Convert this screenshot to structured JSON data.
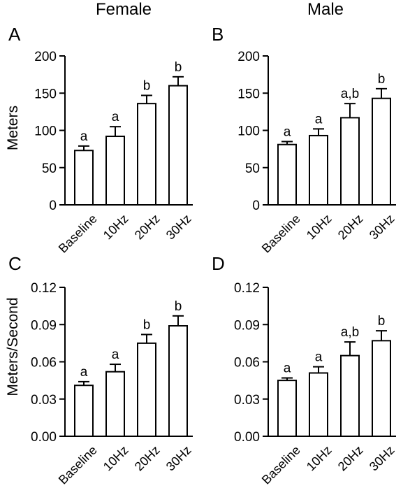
{
  "figure": {
    "column_titles": [
      "Female",
      "Male"
    ],
    "row_ylabels": [
      "Meters",
      "Meters/Second"
    ]
  },
  "chart_data": [
    {
      "panel": "A",
      "type": "bar",
      "column": "Female",
      "ylabel": "Meters",
      "categories": [
        "Baseline",
        "10Hz",
        "20Hz",
        "30Hz"
      ],
      "values": [
        73,
        92,
        136,
        160
      ],
      "errors": [
        6,
        13,
        11,
        12
      ],
      "significance_letters": [
        "a",
        "a",
        "b",
        "b"
      ],
      "ylim": [
        0,
        200
      ],
      "yticks": [
        "0",
        "50",
        "100",
        "150",
        "200"
      ]
    },
    {
      "panel": "B",
      "type": "bar",
      "column": "Male",
      "ylabel": "",
      "categories": [
        "Baseline",
        "10Hz",
        "20Hz",
        "30Hz"
      ],
      "values": [
        81,
        93,
        117,
        143
      ],
      "errors": [
        4,
        9,
        19,
        13
      ],
      "significance_letters": [
        "a",
        "a",
        "a,b",
        "b"
      ],
      "ylim": [
        0,
        200
      ],
      "yticks": [
        "0",
        "50",
        "100",
        "150",
        "200"
      ]
    },
    {
      "panel": "C",
      "type": "bar",
      "column": "Female",
      "ylabel": "Meters/Second",
      "categories": [
        "Baseline",
        "10Hz",
        "20Hz",
        "30Hz"
      ],
      "values": [
        0.041,
        0.052,
        0.075,
        0.089
      ],
      "errors": [
        0.003,
        0.006,
        0.007,
        0.008
      ],
      "significance_letters": [
        "a",
        "a",
        "b",
        "b"
      ],
      "ylim": [
        0,
        0.12
      ],
      "yticks": [
        "0.00",
        "0.03",
        "0.06",
        "0.09",
        "0.12"
      ]
    },
    {
      "panel": "D",
      "type": "bar",
      "column": "Male",
      "ylabel": "",
      "categories": [
        "Baseline",
        "10Hz",
        "20Hz",
        "30Hz"
      ],
      "values": [
        0.045,
        0.051,
        0.065,
        0.077
      ],
      "errors": [
        0.002,
        0.005,
        0.011,
        0.008
      ],
      "significance_letters": [
        "a",
        "a",
        "a,b",
        "b"
      ],
      "ylim": [
        0,
        0.12
      ],
      "yticks": [
        "0.00",
        "0.03",
        "0.06",
        "0.09",
        "0.12"
      ]
    }
  ]
}
